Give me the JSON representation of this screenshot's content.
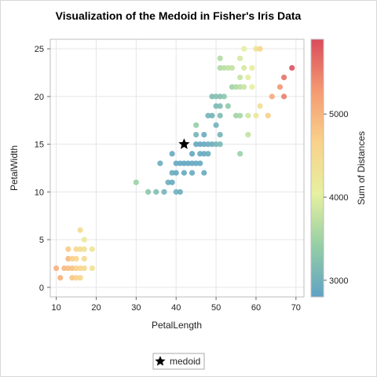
{
  "chart_data": {
    "type": "scatter",
    "title": "Visualization of the Medoid in Fisher's Iris Data",
    "xlabel": "PetalLength",
    "ylabel": "PetalWidth",
    "xlim": [
      8.5,
      72
    ],
    "ylim": [
      -1,
      26
    ],
    "xticks": [
      10,
      20,
      30,
      40,
      50,
      60,
      70
    ],
    "yticks": [
      0,
      5,
      10,
      15,
      20,
      25
    ],
    "grid": true,
    "colorbar": {
      "label": "Sum of Distances",
      "range": [
        2800,
        5900
      ],
      "ticks": [
        3000,
        4000,
        5000
      ],
      "colors": [
        "#5fa2c4",
        "#96cfa5",
        "#e6f0a0",
        "#f9d28a",
        "#f49a72",
        "#d94c5c"
      ]
    },
    "medoid": {
      "x": 42,
      "y": 15,
      "label": "medoid"
    },
    "legend": {
      "position": "bottom",
      "entries": [
        "medoid"
      ]
    },
    "points": [
      {
        "x": 10,
        "y": 2,
        "c": 5050
      },
      {
        "x": 11,
        "y": 1,
        "c": 5000
      },
      {
        "x": 12,
        "y": 2,
        "c": 4950
      },
      {
        "x": 13,
        "y": 2,
        "c": 4900
      },
      {
        "x": 13,
        "y": 3,
        "c": 4950
      },
      {
        "x": 13,
        "y": 4,
        "c": 4750
      },
      {
        "x": 14,
        "y": 1,
        "c": 4800
      },
      {
        "x": 14,
        "y": 2,
        "c": 4850
      },
      {
        "x": 14,
        "y": 3,
        "c": 4700
      },
      {
        "x": 15,
        "y": 1,
        "c": 4650
      },
      {
        "x": 15,
        "y": 2,
        "c": 4700
      },
      {
        "x": 15,
        "y": 3,
        "c": 4600
      },
      {
        "x": 15,
        "y": 4,
        "c": 4550
      },
      {
        "x": 16,
        "y": 1,
        "c": 4600
      },
      {
        "x": 16,
        "y": 2,
        "c": 4600
      },
      {
        "x": 16,
        "y": 4,
        "c": 4450
      },
      {
        "x": 16,
        "y": 6,
        "c": 4450
      },
      {
        "x": 17,
        "y": 2,
        "c": 4550
      },
      {
        "x": 17,
        "y": 3,
        "c": 4500
      },
      {
        "x": 17,
        "y": 4,
        "c": 4400
      },
      {
        "x": 17,
        "y": 5,
        "c": 4200
      },
      {
        "x": 19,
        "y": 2,
        "c": 4350
      },
      {
        "x": 19,
        "y": 4,
        "c": 4250
      },
      {
        "x": 30,
        "y": 11,
        "c": 3450
      },
      {
        "x": 33,
        "y": 10,
        "c": 3300
      },
      {
        "x": 35,
        "y": 10,
        "c": 3200
      },
      {
        "x": 36,
        "y": 13,
        "c": 2950
      },
      {
        "x": 37,
        "y": 10,
        "c": 3050
      },
      {
        "x": 38,
        "y": 11,
        "c": 2950
      },
      {
        "x": 39,
        "y": 11,
        "c": 2900
      },
      {
        "x": 39,
        "y": 12,
        "c": 2950
      },
      {
        "x": 39,
        "y": 14,
        "c": 2900
      },
      {
        "x": 40,
        "y": 10,
        "c": 3000
      },
      {
        "x": 40,
        "y": 12,
        "c": 2900
      },
      {
        "x": 40,
        "y": 13,
        "c": 2880
      },
      {
        "x": 41,
        "y": 10,
        "c": 2950
      },
      {
        "x": 41,
        "y": 13,
        "c": 2870
      },
      {
        "x": 42,
        "y": 12,
        "c": 2880
      },
      {
        "x": 42,
        "y": 13,
        "c": 2860
      },
      {
        "x": 43,
        "y": 13,
        "c": 2860
      },
      {
        "x": 44,
        "y": 12,
        "c": 2880
      },
      {
        "x": 44,
        "y": 13,
        "c": 2870
      },
      {
        "x": 44,
        "y": 14,
        "c": 2860
      },
      {
        "x": 45,
        "y": 13,
        "c": 2870
      },
      {
        "x": 45,
        "y": 15,
        "c": 2870
      },
      {
        "x": 45,
        "y": 16,
        "c": 3050
      },
      {
        "x": 45,
        "y": 17,
        "c": 3400
      },
      {
        "x": 46,
        "y": 13,
        "c": 2880
      },
      {
        "x": 46,
        "y": 14,
        "c": 2880
      },
      {
        "x": 46,
        "y": 15,
        "c": 2880
      },
      {
        "x": 47,
        "y": 12,
        "c": 2900
      },
      {
        "x": 47,
        "y": 14,
        "c": 2900
      },
      {
        "x": 47,
        "y": 15,
        "c": 2890
      },
      {
        "x": 47,
        "y": 16,
        "c": 2920
      },
      {
        "x": 48,
        "y": 14,
        "c": 2950
      },
      {
        "x": 48,
        "y": 15,
        "c": 2930
      },
      {
        "x": 48,
        "y": 18,
        "c": 3050
      },
      {
        "x": 49,
        "y": 15,
        "c": 2950
      },
      {
        "x": 49,
        "y": 18,
        "c": 3000
      },
      {
        "x": 49,
        "y": 20,
        "c": 3150
      },
      {
        "x": 50,
        "y": 15,
        "c": 3050
      },
      {
        "x": 50,
        "y": 17,
        "c": 3000
      },
      {
        "x": 50,
        "y": 19,
        "c": 3100
      },
      {
        "x": 50,
        "y": 20,
        "c": 3200
      },
      {
        "x": 51,
        "y": 15,
        "c": 3100
      },
      {
        "x": 51,
        "y": 16,
        "c": 3050
      },
      {
        "x": 51,
        "y": 18,
        "c": 3150
      },
      {
        "x": 51,
        "y": 19,
        "c": 3150
      },
      {
        "x": 51,
        "y": 20,
        "c": 3200
      },
      {
        "x": 51,
        "y": 23,
        "c": 3600
      },
      {
        "x": 51,
        "y": 24,
        "c": 3650
      },
      {
        "x": 52,
        "y": 20,
        "c": 3300
      },
      {
        "x": 52,
        "y": 23,
        "c": 3700
      },
      {
        "x": 53,
        "y": 19,
        "c": 3350
      },
      {
        "x": 53,
        "y": 23,
        "c": 3750
      },
      {
        "x": 54,
        "y": 21,
        "c": 3500
      },
      {
        "x": 54,
        "y": 23,
        "c": 3750
      },
      {
        "x": 55,
        "y": 18,
        "c": 3500
      },
      {
        "x": 55,
        "y": 21,
        "c": 3600
      },
      {
        "x": 56,
        "y": 14,
        "c": 3450
      },
      {
        "x": 56,
        "y": 18,
        "c": 3550
      },
      {
        "x": 56,
        "y": 21,
        "c": 3700
      },
      {
        "x": 56,
        "y": 22,
        "c": 3800
      },
      {
        "x": 56,
        "y": 24,
        "c": 3900
      },
      {
        "x": 57,
        "y": 21,
        "c": 3800
      },
      {
        "x": 57,
        "y": 23,
        "c": 3900
      },
      {
        "x": 57,
        "y": 25,
        "c": 4050
      },
      {
        "x": 58,
        "y": 16,
        "c": 3750
      },
      {
        "x": 58,
        "y": 18,
        "c": 3850
      },
      {
        "x": 58,
        "y": 22,
        "c": 4000
      },
      {
        "x": 59,
        "y": 21,
        "c": 4050
      },
      {
        "x": 59,
        "y": 23,
        "c": 4100
      },
      {
        "x": 60,
        "y": 18,
        "c": 4200
      },
      {
        "x": 60,
        "y": 25,
        "c": 4300
      },
      {
        "x": 61,
        "y": 19,
        "c": 4400
      },
      {
        "x": 61,
        "y": 25,
        "c": 4600
      },
      {
        "x": 63,
        "y": 18,
        "c": 4700
      },
      {
        "x": 64,
        "y": 20,
        "c": 5100
      },
      {
        "x": 66,
        "y": 21,
        "c": 5300
      },
      {
        "x": 67,
        "y": 20,
        "c": 5500
      },
      {
        "x": 67,
        "y": 22,
        "c": 5600
      },
      {
        "x": 69,
        "y": 23,
        "c": 5850
      }
    ]
  }
}
